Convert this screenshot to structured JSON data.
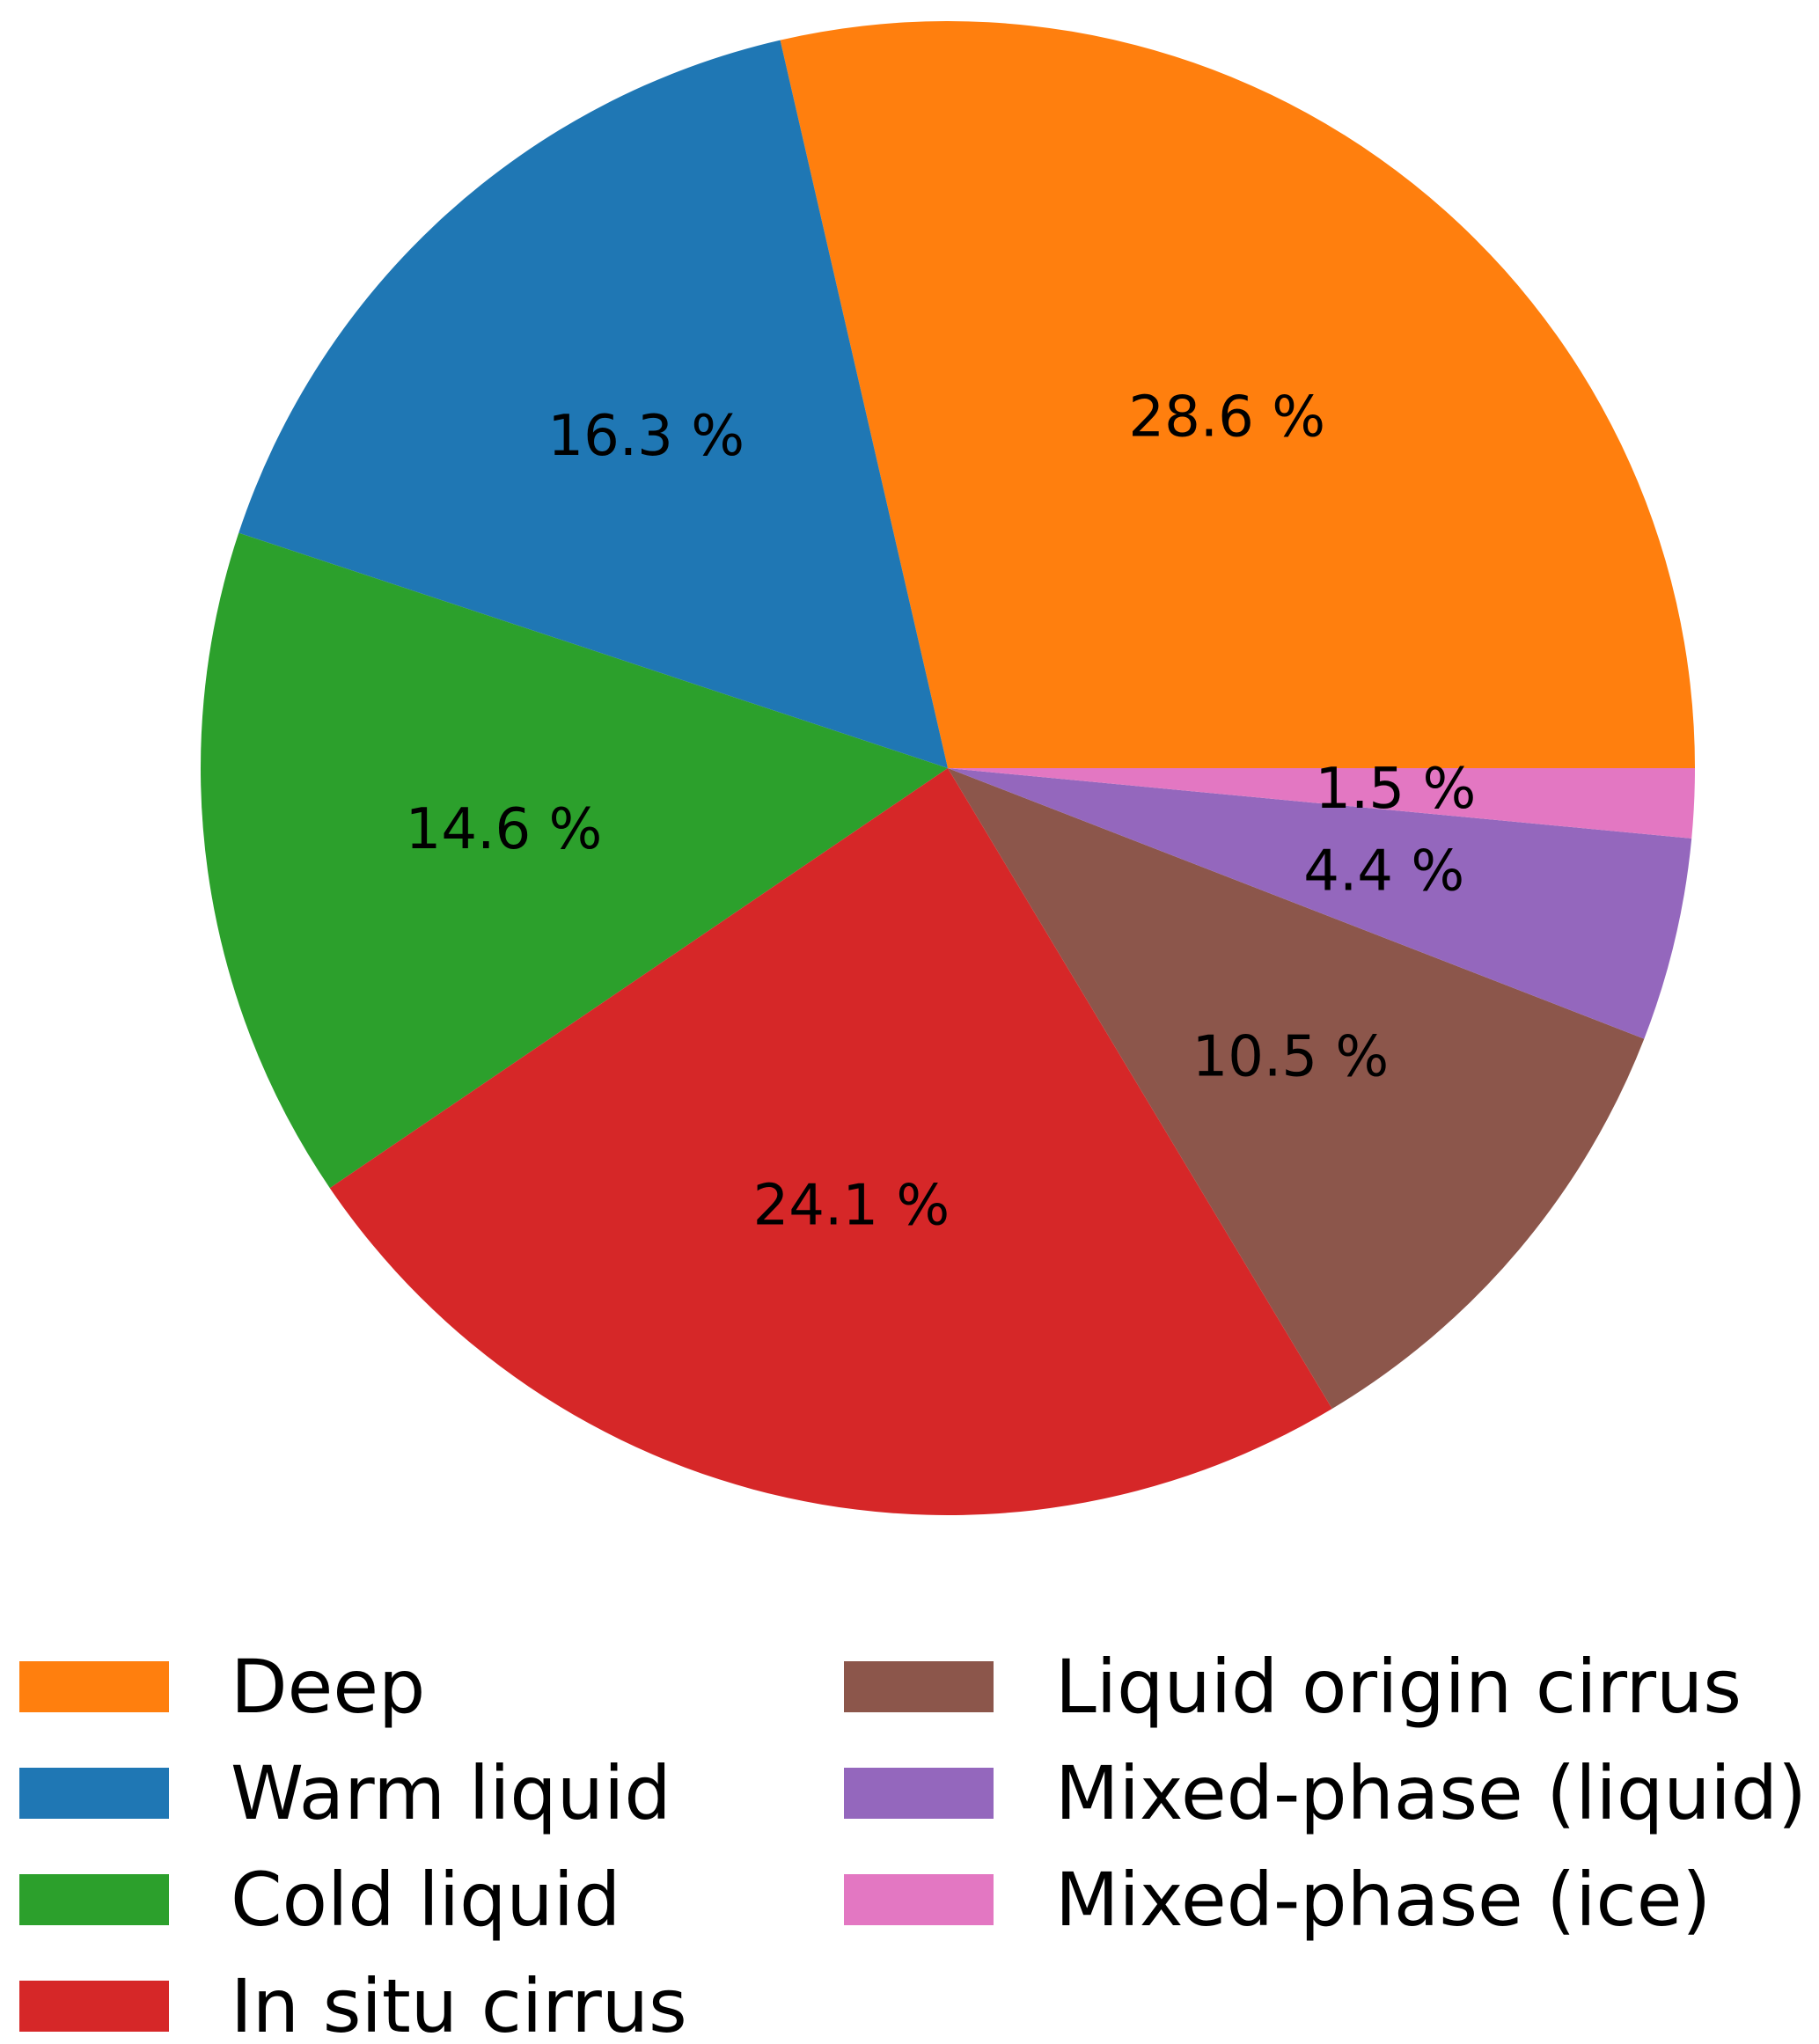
{
  "chart_data": {
    "type": "pie",
    "slices": [
      {
        "label": "Deep",
        "value": 28.6,
        "value_label": "28.6 %",
        "color": "#ff7f0e"
      },
      {
        "label": "Warm liquid",
        "value": 16.3,
        "value_label": "16.3 %",
        "color": "#1f77b4"
      },
      {
        "label": "Cold liquid",
        "value": 14.6,
        "value_label": "14.6 %",
        "color": "#2ca02c"
      },
      {
        "label": "In situ cirrus",
        "value": 24.1,
        "value_label": "24.1 %",
        "color": "#d62728"
      },
      {
        "label": "Liquid origin cirrus",
        "value": 10.5,
        "value_label": "10.5 %",
        "color": "#8c564b"
      },
      {
        "label": "Mixed-phase (liquid)",
        "value": 4.4,
        "value_label": "4.4 %",
        "color": "#9467bd"
      },
      {
        "label": "Mixed-phase (ice)",
        "value": 1.5,
        "value_label": "1.5 %",
        "color": "#e377c2"
      }
    ],
    "start_angle_deg": 0,
    "direction": "counterclockwise",
    "legend": {
      "placement": "bottom",
      "columns": 2
    }
  }
}
